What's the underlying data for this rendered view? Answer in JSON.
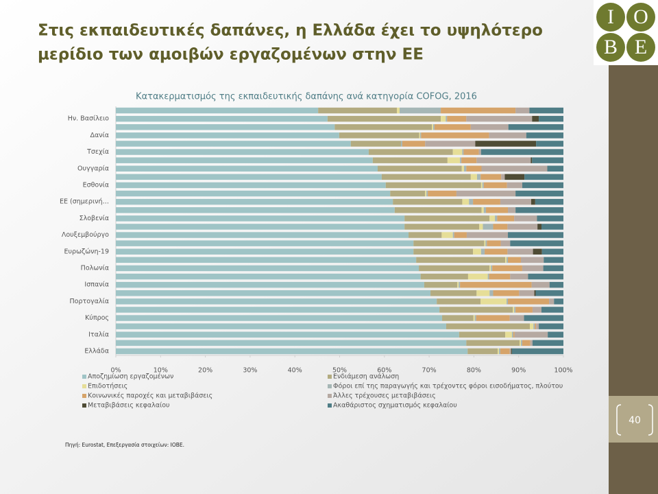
{
  "slide": {
    "title_lines": [
      "Στις εκπαιδευτικές δαπάνες, η Ελλάδα έχει το υψηλότερο",
      "μερίδιο των αμοιβών εργαζομένων στην ΕΕ"
    ],
    "logo": [
      "I",
      "O",
      "B",
      "E"
    ],
    "page_number": "40",
    "source": "Πηγή: Eurostat, Επεξεργασία στοιχείων: ΙΟΒΕ."
  },
  "chart_data": {
    "type": "stacked-barh",
    "title": "Κατακερματισμός της εκπαιδευτικής δαπάνης ανά κατηγορία COFOG, 2016",
    "categories": [
      null,
      "Ην. Βασίλειο",
      null,
      "Δανία",
      null,
      "Τσεχία",
      null,
      "Ουγγαρία",
      null,
      "Εσθονία",
      null,
      "ΕΕ (σημερινή…",
      null,
      "Σλοβενία",
      null,
      "Λουξεμβούργο",
      null,
      "Ευρωζώνη-19",
      null,
      "Πολωνία",
      null,
      "Ισπανία",
      null,
      "Πορτογαλία",
      null,
      "Κύπρος",
      null,
      "Ιταλία",
      null,
      "Ελλάδα"
    ],
    "series": [
      {
        "name": "Αποζημίωση εργαζομένων",
        "color": "#9fc4c6",
        "values": [
          45.2,
          47.3,
          48.9,
          49.9,
          52.5,
          56.5,
          57.4,
          58.5,
          59.4,
          60.3,
          61.3,
          61.9,
          62.3,
          64.5,
          64.5,
          65.4,
          66.5,
          66.5,
          67.1,
          67.7,
          68.1,
          68.9,
          70.3,
          71.7,
          72.3,
          72.9,
          73.8,
          76.7,
          78.3,
          78.6
        ]
      },
      {
        "name": "Ενδιάμεση ανάλωση",
        "color": "#b3ab80",
        "values": [
          17.6,
          25.3,
          21.7,
          17.9,
          11.2,
          18.8,
          16.7,
          18.8,
          19.9,
          21.3,
          7.8,
          15.5,
          19.4,
          19.0,
          16.7,
          7.4,
          15.8,
          13.3,
          19.9,
          15.8,
          10.6,
          7.4,
          10.3,
          9.8,
          16.4,
          7.0,
          18.7,
          10.3,
          11.9,
          6.7
        ]
      },
      {
        "name": "Επιδοτήσεις",
        "color": "#e6de98",
        "values": [
          0.6,
          1.1,
          0.3,
          0.2,
          0,
          2.1,
          2.8,
          0.5,
          1.4,
          0.3,
          0.3,
          1.5,
          0.5,
          1.2,
          0.8,
          2.5,
          0.3,
          1.8,
          0.3,
          0.3,
          4.4,
          0.3,
          2.9,
          5.8,
          0.3,
          0.3,
          0.8,
          1.5,
          0.3,
          0.3
        ]
      },
      {
        "name": "Φόροι επί της παραγωγής και τρέχοντες φόροι εισοδήματος, πλούτου",
        "color": "#a6b7b6",
        "values": [
          9.2,
          0.3,
          0.3,
          0.2,
          0.3,
          0.3,
          0.3,
          0.5,
          0.8,
          0.3,
          0.3,
          0.9,
          0.5,
          0.5,
          2.3,
          0.3,
          0.3,
          0.8,
          0.3,
          0.3,
          0.3,
          0.3,
          0.8,
          0.3,
          0.3,
          0.3,
          0.3,
          0.3,
          0.3,
          0.3
        ]
      },
      {
        "name": "Κοινωνικές παροχές και μεταβιβάσεις",
        "color": "#d6a46a",
        "values": [
          16.7,
          4.3,
          8.1,
          15.2,
          5.1,
          3.4,
          3.4,
          3.4,
          4.6,
          5.2,
          6.4,
          6.1,
          4.9,
          3.8,
          3.2,
          2.8,
          3.1,
          5.1,
          2.9,
          6.7,
          4.7,
          16.0,
          5.8,
          9.2,
          3.8,
          7.5,
          0.3,
          0.3,
          1.8,
          2.1
        ]
      },
      {
        "name": "Άλλες τρέχουσες μεταβιβάσεις",
        "color": "#b6a9a2",
        "values": [
          3.1,
          14.7,
          8.4,
          8.3,
          11.2,
          0.5,
          12.1,
          14.7,
          0.8,
          3.4,
          13.2,
          6.9,
          1.7,
          5.1,
          6.7,
          9.2,
          2.1,
          5.7,
          5.1,
          4.7,
          4.0,
          4.0,
          3.4,
          1.1,
          2.0,
          3.2,
          0.6,
          7.4,
          0.5,
          0.3
        ]
      },
      {
        "name": "Μεταβιβάσεις κεφαλαίου",
        "color": "#4f4c35",
        "values": [
          0,
          1.5,
          0,
          0,
          13.6,
          0,
          0.3,
          0,
          4.4,
          0,
          0,
          0.9,
          0,
          0,
          0.9,
          0,
          0,
          2.0,
          0,
          0,
          0,
          0,
          0.3,
          0,
          0,
          0,
          0,
          0,
          0,
          0.2
        ]
      },
      {
        "name": "Ακαθάριστος σχηματισμός κεφαλαίου",
        "color": "#4f7d86",
        "values": [
          7.6,
          5.5,
          12.3,
          8.3,
          6.1,
          18.4,
          7.0,
          3.6,
          8.7,
          9.2,
          10.7,
          6.3,
          10.7,
          5.9,
          4.9,
          12.4,
          11.9,
          4.8,
          4.4,
          4.5,
          7.9,
          3.1,
          6.2,
          2.1,
          4.9,
          8.8,
          5.5,
          3.5,
          6.9,
          11.5
        ]
      }
    ],
    "xlim": [
      0,
      100
    ],
    "xticks": [
      {
        "value": 0,
        "label": "0%"
      },
      {
        "value": 10,
        "label": "10%"
      },
      {
        "value": 20,
        "label": "20%"
      },
      {
        "value": 30,
        "label": "30%"
      },
      {
        "value": 40,
        "label": "40%"
      },
      {
        "value": 50,
        "label": "50%"
      },
      {
        "value": 60,
        "label": "60%"
      },
      {
        "value": 70,
        "label": "70%"
      },
      {
        "value": 80,
        "label": "80%"
      },
      {
        "value": 90,
        "label": "90%"
      },
      {
        "value": 100,
        "label": "100%"
      }
    ],
    "grid": false,
    "legend": "bottom"
  }
}
